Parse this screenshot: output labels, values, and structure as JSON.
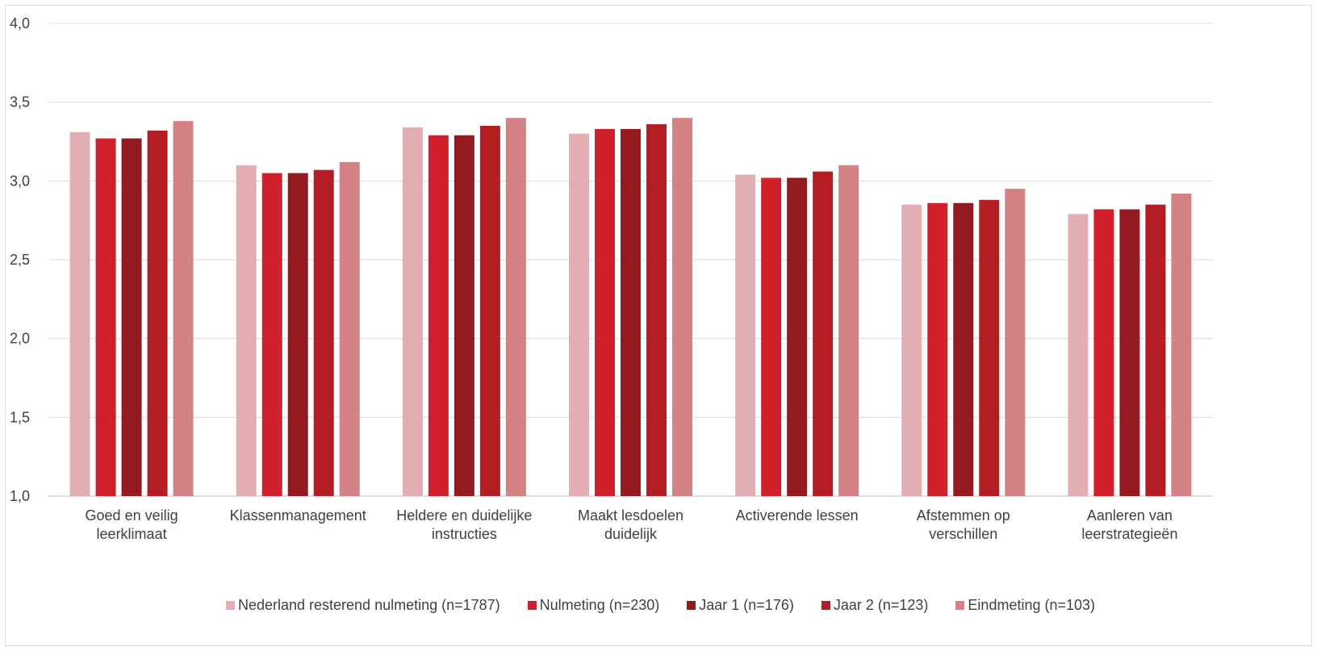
{
  "chart_data": {
    "type": "bar",
    "title": "",
    "xlabel": "",
    "ylabel": "",
    "ylim": [
      1.0,
      4.0
    ],
    "yticks": [
      "1,0",
      "1,5",
      "2,0",
      "2,5",
      "3,0",
      "3,5",
      "4,0"
    ],
    "grid": true,
    "legend_position": "bottom",
    "categories": [
      [
        "Goed en veilig",
        "leerklimaat"
      ],
      [
        "Klassenmanagement"
      ],
      [
        "Heldere en duidelijke",
        "instructies"
      ],
      [
        "Maakt lesdoelen",
        "duidelijk"
      ],
      [
        "Activerende lessen"
      ],
      [
        "Afstemmen op",
        "verschillen"
      ],
      [
        "Aanleren van",
        "leerstrategieën"
      ]
    ],
    "series": [
      {
        "name": "Nederland resterend nulmeting (n=1787)",
        "color": "#E2AEB1",
        "values": [
          3.31,
          3.1,
          3.34,
          3.3,
          3.04,
          2.85,
          2.79
        ]
      },
      {
        "name": "Nulmeting (n=230)",
        "color": "#D0202B",
        "values": [
          3.27,
          3.05,
          3.29,
          3.33,
          3.02,
          2.86,
          2.82
        ]
      },
      {
        "name": "Jaar 1 (n=176)",
        "color": "#951A20",
        "values": [
          3.27,
          3.05,
          3.29,
          3.33,
          3.02,
          2.86,
          2.82
        ]
      },
      {
        "name": "Jaar 2 (n=123)",
        "color": "#B31E25",
        "values": [
          3.32,
          3.07,
          3.35,
          3.36,
          3.06,
          2.88,
          2.85
        ]
      },
      {
        "name": "Eindmeting (n=103)",
        "color": "#D58286",
        "values": [
          3.38,
          3.12,
          3.4,
          3.4,
          3.1,
          2.95,
          2.92
        ]
      }
    ]
  }
}
